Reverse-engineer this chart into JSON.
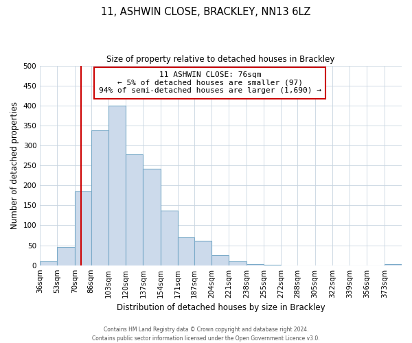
{
  "title": "11, ASHWIN CLOSE, BRACKLEY, NN13 6LZ",
  "subtitle": "Size of property relative to detached houses in Brackley",
  "xlabel": "Distribution of detached houses by size in Brackley",
  "ylabel": "Number of detached properties",
  "bar_color": "#ccdaeb",
  "bar_edge_color": "#7aaac8",
  "vline_color": "#cc0000",
  "vline_x": 76,
  "categories": [
    "36sqm",
    "53sqm",
    "70sqm",
    "86sqm",
    "103sqm",
    "120sqm",
    "137sqm",
    "154sqm",
    "171sqm",
    "187sqm",
    "204sqm",
    "221sqm",
    "238sqm",
    "255sqm",
    "272sqm",
    "288sqm",
    "305sqm",
    "322sqm",
    "339sqm",
    "356sqm",
    "373sqm"
  ],
  "bin_edges": [
    36,
    53,
    70,
    86,
    103,
    120,
    137,
    154,
    171,
    187,
    204,
    221,
    238,
    255,
    272,
    288,
    305,
    322,
    339,
    356,
    373,
    390
  ],
  "values": [
    10,
    46,
    185,
    337,
    399,
    277,
    241,
    136,
    70,
    62,
    26,
    9,
    3,
    1,
    0,
    0,
    0,
    0,
    0,
    0,
    3
  ],
  "ylim": [
    0,
    500
  ],
  "yticks": [
    0,
    50,
    100,
    150,
    200,
    250,
    300,
    350,
    400,
    450,
    500
  ],
  "annotation_title": "11 ASHWIN CLOSE: 76sqm",
  "annotation_line1": "← 5% of detached houses are smaller (97)",
  "annotation_line2": "94% of semi-detached houses are larger (1,690) →",
  "annotation_box_color": "#ffffff",
  "annotation_box_edge": "#cc0000",
  "footer1": "Contains HM Land Registry data © Crown copyright and database right 2024.",
  "footer2": "Contains public sector information licensed under the Open Government Licence v3.0."
}
